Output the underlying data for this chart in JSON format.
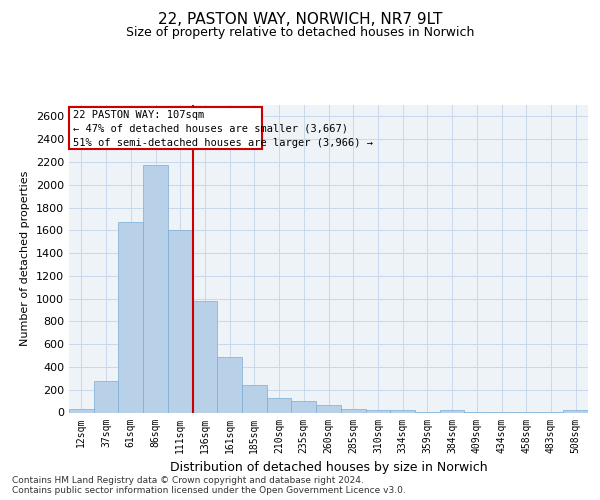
{
  "title1": "22, PASTON WAY, NORWICH, NR7 9LT",
  "title2": "Size of property relative to detached houses in Norwich",
  "xlabel": "Distribution of detached houses by size in Norwich",
  "ylabel": "Number of detached properties",
  "footer1": "Contains HM Land Registry data © Crown copyright and database right 2024.",
  "footer2": "Contains public sector information licensed under the Open Government Licence v3.0.",
  "annotation_title": "22 PASTON WAY: 107sqm",
  "annotation_line1": "← 47% of detached houses are smaller (3,667)",
  "annotation_line2": "51% of semi-detached houses are larger (3,966) →",
  "bar_color": "#b8d0e8",
  "bar_edge_color": "#7aadd4",
  "ref_line_color": "#cc0000",
  "annotation_box_edgecolor": "#cc0000",
  "categories": [
    "12sqm",
    "37sqm",
    "61sqm",
    "86sqm",
    "111sqm",
    "136sqm",
    "161sqm",
    "185sqm",
    "210sqm",
    "235sqm",
    "260sqm",
    "285sqm",
    "310sqm",
    "334sqm",
    "359sqm",
    "384sqm",
    "409sqm",
    "434sqm",
    "458sqm",
    "483sqm",
    "508sqm"
  ],
  "values": [
    30,
    280,
    1670,
    2170,
    1600,
    975,
    490,
    245,
    130,
    100,
    65,
    35,
    18,
    20,
    8,
    18,
    5,
    5,
    5,
    5,
    18
  ],
  "ylim": [
    0,
    2700
  ],
  "yticks": [
    0,
    200,
    400,
    600,
    800,
    1000,
    1200,
    1400,
    1600,
    1800,
    2000,
    2200,
    2400,
    2600
  ],
  "ref_line_bar_index": 4,
  "grid_color": "#c8d8ea",
  "bg_color": "#eef3f8",
  "title1_fontsize": 11,
  "title2_fontsize": 9,
  "ylabel_fontsize": 8,
  "xlabel_fontsize": 9,
  "ytick_fontsize": 8,
  "xtick_fontsize": 7
}
